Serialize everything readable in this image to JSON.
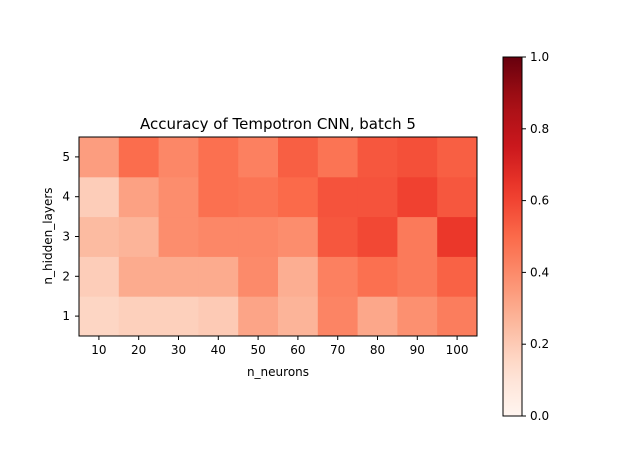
{
  "chart_data": {
    "type": "heatmap",
    "title": "Accuracy of Tempotron CNN, batch 5",
    "xlabel": "n_neurons",
    "ylabel": "n_hidden_layers",
    "x_categories": [
      "10",
      "20",
      "30",
      "40",
      "50",
      "60",
      "70",
      "80",
      "90",
      "100"
    ],
    "y_categories": [
      "1",
      "2",
      "3",
      "4",
      "5"
    ],
    "values": [
      [
        0.16,
        0.18,
        0.18,
        0.2,
        0.32,
        0.27,
        0.42,
        0.31,
        0.38,
        0.44
      ],
      [
        0.19,
        0.3,
        0.3,
        0.3,
        0.4,
        0.29,
        0.43,
        0.48,
        0.45,
        0.52
      ],
      [
        0.25,
        0.27,
        0.39,
        0.41,
        0.41,
        0.39,
        0.55,
        0.59,
        0.45,
        0.64
      ],
      [
        0.19,
        0.33,
        0.39,
        0.48,
        0.47,
        0.5,
        0.56,
        0.56,
        0.61,
        0.55
      ],
      [
        0.34,
        0.49,
        0.41,
        0.48,
        0.43,
        0.53,
        0.47,
        0.55,
        0.57,
        0.53
      ]
    ],
    "colormap": "Reds",
    "vmin": 0.0,
    "vmax": 1.0,
    "colorbar_ticks": [
      "0.0",
      "0.2",
      "0.4",
      "0.6",
      "0.8",
      "1.0"
    ],
    "colors": {
      "low": "#fff5f0",
      "high": "#67000d"
    },
    "grid": false
  }
}
